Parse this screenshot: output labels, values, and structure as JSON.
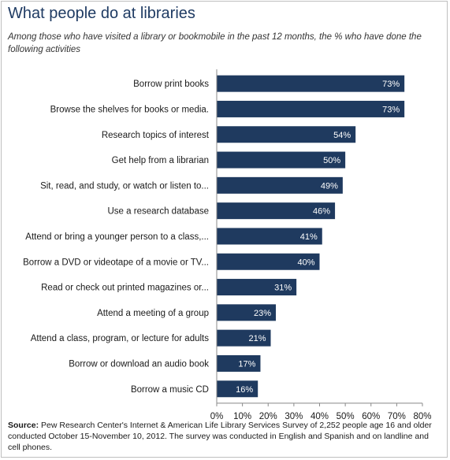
{
  "title": "What people do at libraries",
  "subtitle": "Among those who have visited a library or bookmobile in the past 12 months, the % who have done the following activities",
  "source_label": "Source:",
  "source_text": "Pew Research Center's Internet & American Life Library Services Survey of 2,252 people age 16 and older conducted October 15-November 10, 2012. The survey was conducted in English and Spanish and on landline and cell phones.",
  "colors": {
    "bar": "#1f3a5f",
    "title": "#1f3b63",
    "axis": "#888888"
  },
  "chart_data": {
    "type": "bar",
    "orientation": "horizontal",
    "categories": [
      "Borrow print books",
      "Browse the shelves for books or media.",
      "Research topics of interest",
      "Get help from a librarian",
      "Sit, read, and study, or watch or listen to...",
      "Use a research database",
      "Attend or bring a younger person to a class,...",
      "Borrow a DVD or videotape of a movie or TV...",
      "Read or check out printed magazines or...",
      "Attend a meeting of a group",
      "Attend a class, program, or lecture for adults",
      "Borrow or download an audio book",
      "Borrow a music CD"
    ],
    "values": [
      73,
      73,
      54,
      50,
      49,
      46,
      41,
      40,
      31,
      23,
      21,
      17,
      16
    ],
    "data_labels": [
      "73%",
      "73%",
      "54%",
      "50%",
      "49%",
      "46%",
      "41%",
      "40%",
      "31%",
      "23%",
      "21%",
      "17%",
      "16%"
    ],
    "xlim": [
      0,
      80
    ],
    "x_ticks": [
      "0%",
      "10%",
      "20%",
      "30%",
      "40%",
      "50%",
      "60%",
      "70%",
      "80%"
    ],
    "grid": false
  }
}
